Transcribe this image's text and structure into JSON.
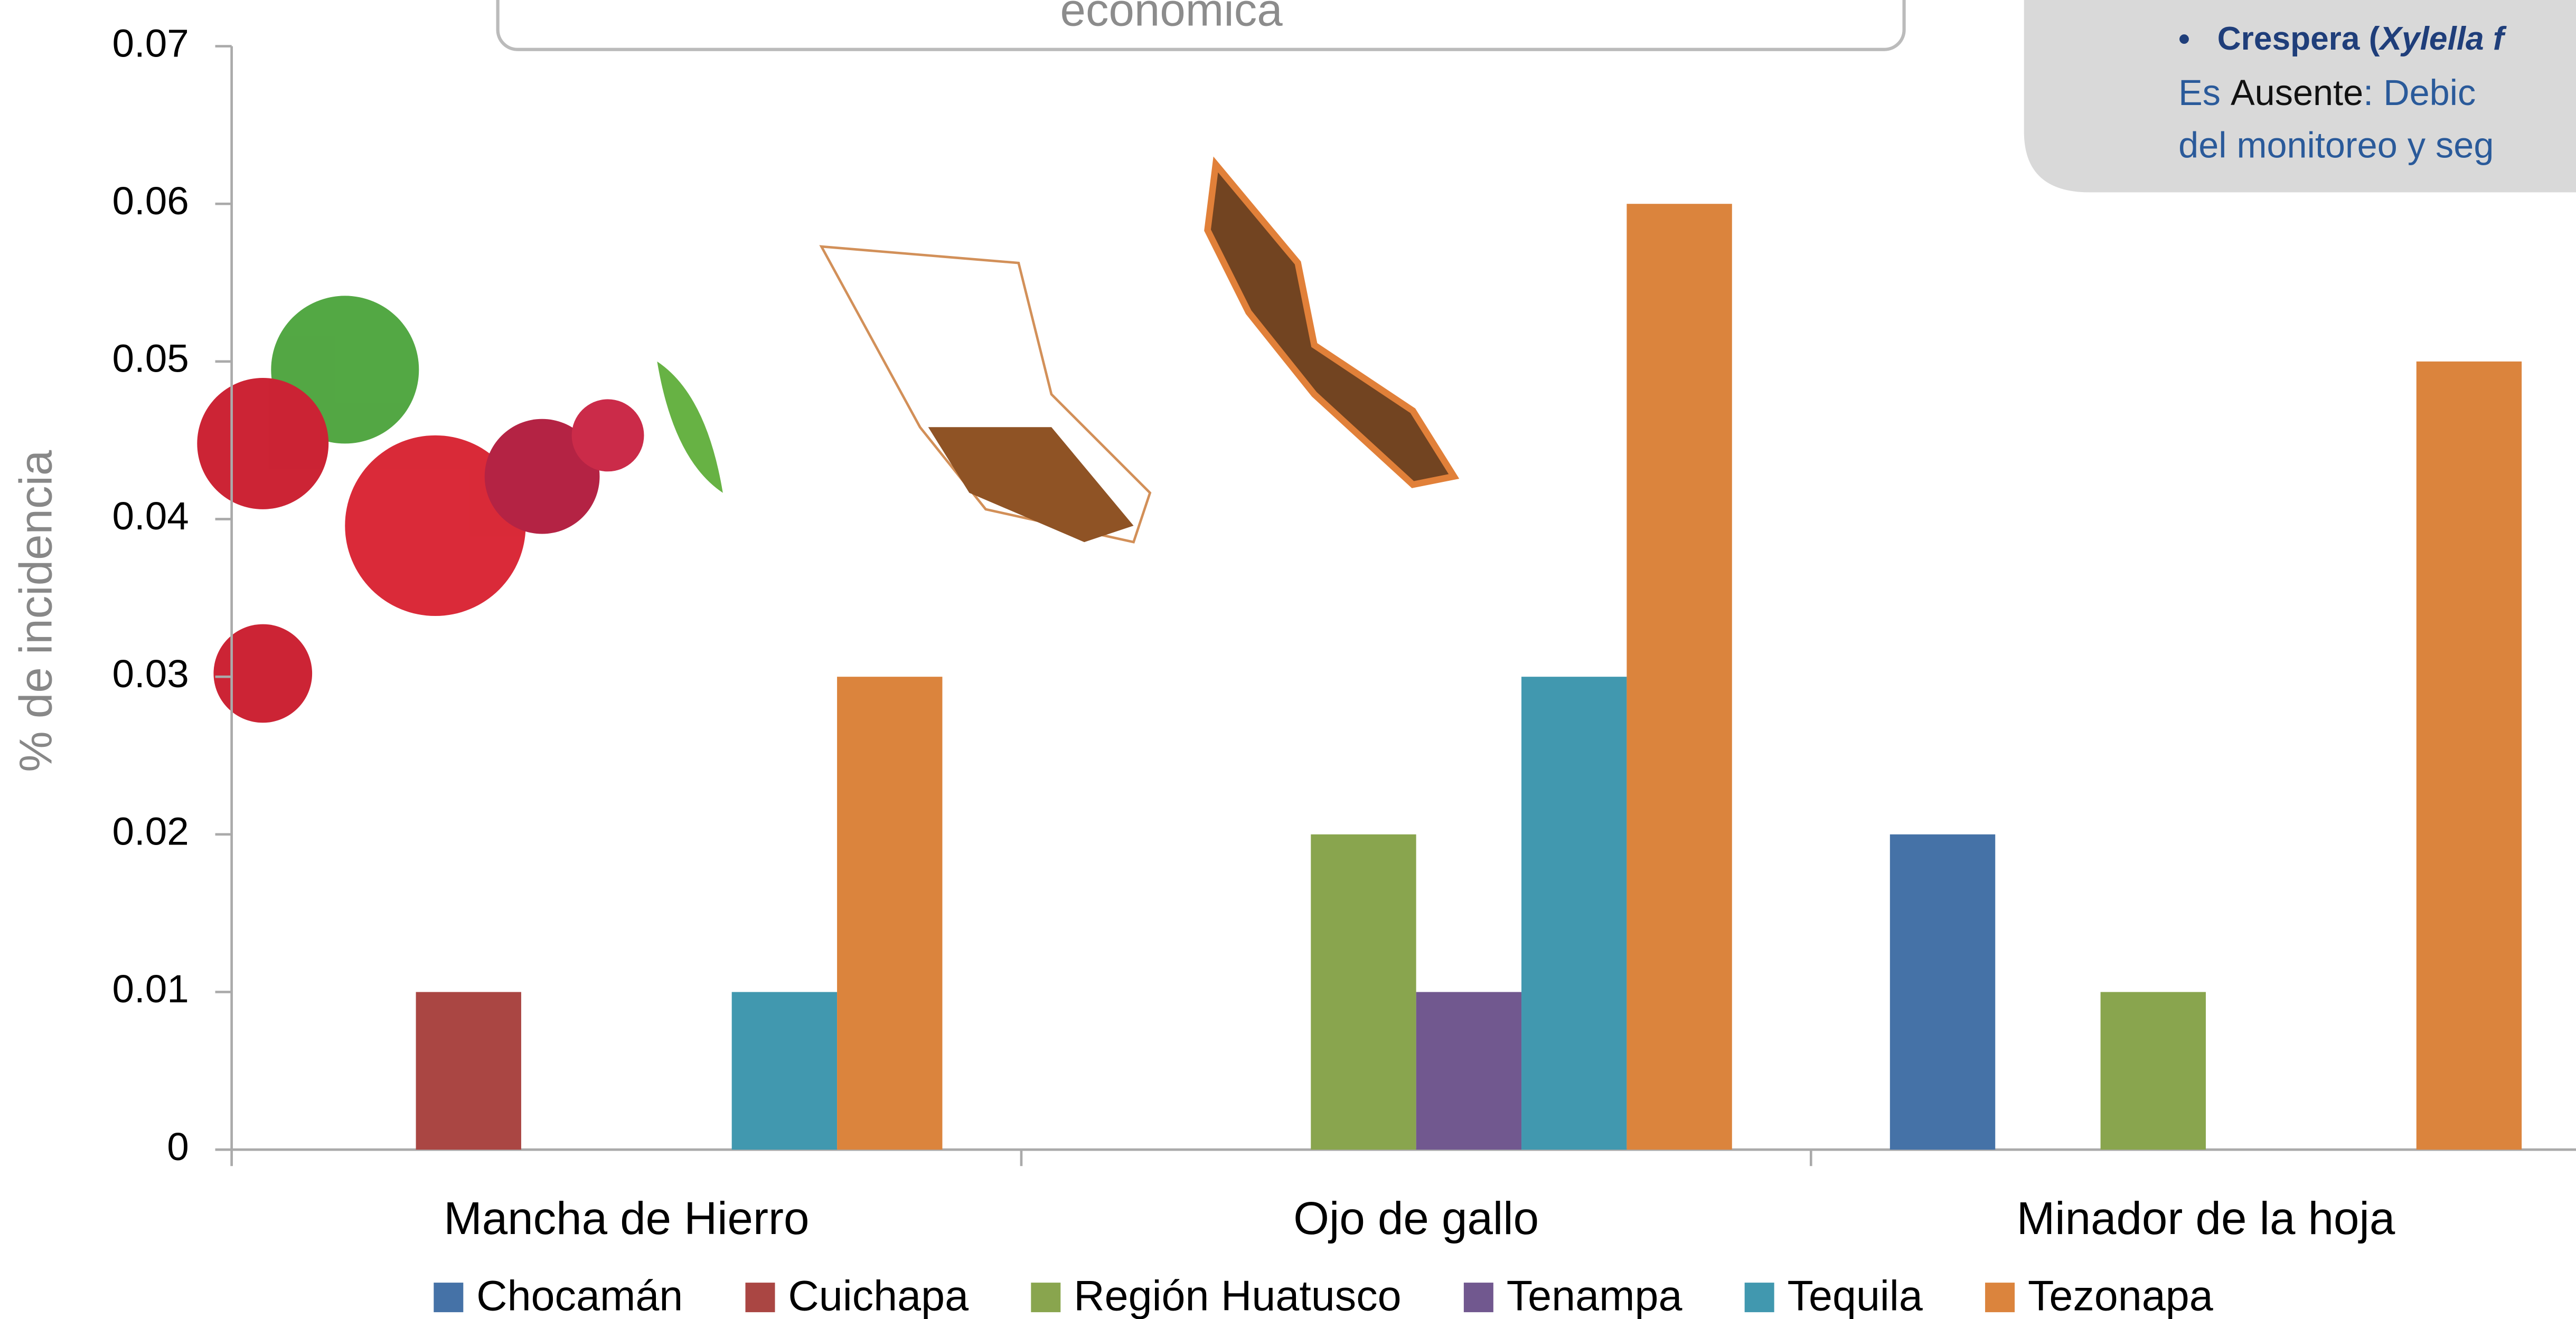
{
  "header_box": "económica",
  "note": {
    "bullet_bold": "Crespera (",
    "bullet_italic": "Xylella f",
    "line1_start": "Es ",
    "line1_word": "Ausente",
    "line1_end": ": Debic",
    "line2": "del monitoreo y seg"
  },
  "chart_data": {
    "type": "bar",
    "y_label": "% de incidencia",
    "categories": [
      "Mancha de Hierro",
      "Ojo de gallo",
      "Minador de la hoja"
    ],
    "series": [
      {
        "name": "Chocamán",
        "color": "#4572a7",
        "values": [
          0,
          0,
          0.02
        ]
      },
      {
        "name": "Cuichapa",
        "color": "#aa4643",
        "values": [
          0.01,
          0,
          0
        ]
      },
      {
        "name": "Región Huatusco",
        "color": "#89a54e",
        "values": [
          0,
          0.02,
          0.01
        ]
      },
      {
        "name": "Tenampa",
        "color": "#71588f",
        "values": [
          0,
          0.01,
          0
        ]
      },
      {
        "name": "Tequila",
        "color": "#4198af",
        "values": [
          0.01,
          0.03,
          0
        ]
      },
      {
        "name": "Tezonapa",
        "color": "#db843d",
        "values": [
          0.03,
          0.06,
          0.05
        ]
      }
    ],
    "ylim": [
      0,
      0.07
    ],
    "yticks": [
      0,
      0.01,
      0.02,
      0.03,
      0.04,
      0.05,
      0.06,
      0.07
    ],
    "grid": false,
    "legend": "bottom"
  }
}
